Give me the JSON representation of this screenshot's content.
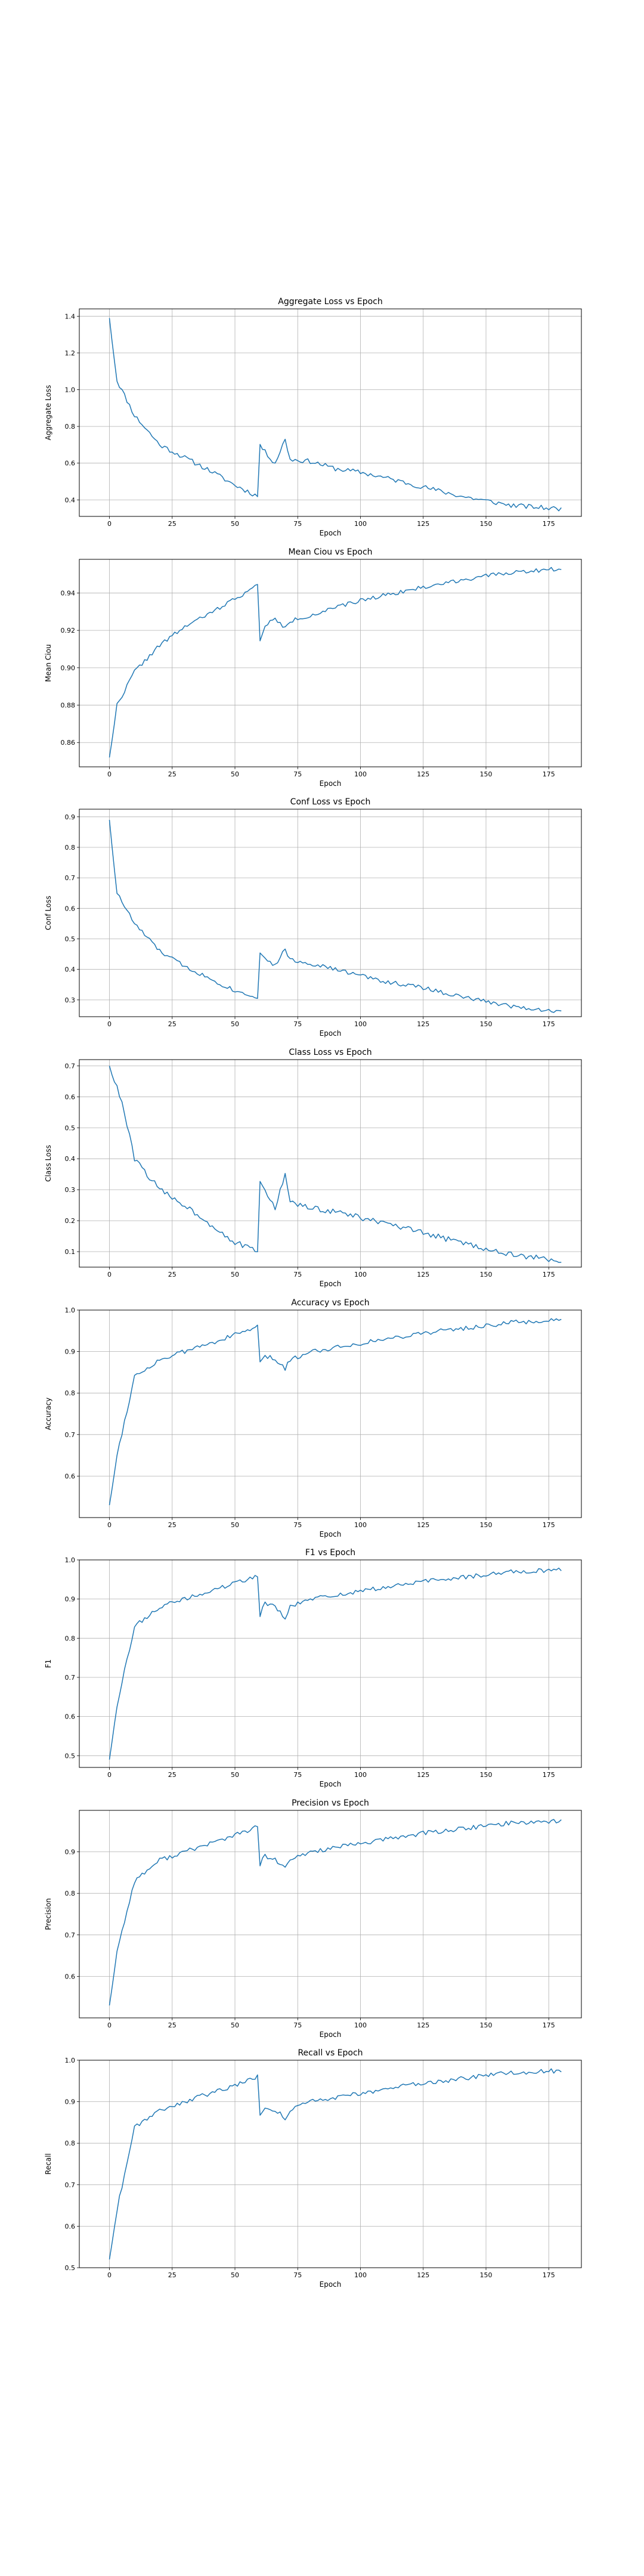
{
  "figure": {
    "background": "#ffffff",
    "line_color": "#1f77b4",
    "grid": true
  },
  "chart_data": [
    {
      "type": "line",
      "title": "Aggregate Loss vs Epoch",
      "xlabel": "Epoch",
      "ylabel": "Aggregate Loss",
      "xlim": [
        -12,
        188
      ],
      "ylim": [
        0.31,
        1.44
      ],
      "xticks": [
        0,
        25,
        50,
        75,
        100,
        125,
        150,
        175
      ],
      "yticks": [
        0.4,
        0.6,
        0.8,
        1.0,
        1.2,
        1.4
      ],
      "ytick_labels": [
        "0.4",
        "0.6",
        "0.8",
        "1.0",
        "1.2",
        "1.4"
      ],
      "keypoints": [
        [
          0,
          1.39
        ],
        [
          3,
          1.05
        ],
        [
          10,
          0.86
        ],
        [
          20,
          0.7
        ],
        [
          30,
          0.63
        ],
        [
          40,
          0.56
        ],
        [
          50,
          0.48
        ],
        [
          59,
          0.42
        ],
        [
          60,
          0.7
        ],
        [
          62,
          0.66
        ],
        [
          66,
          0.6
        ],
        [
          70,
          0.73
        ],
        [
          72,
          0.62
        ],
        [
          80,
          0.61
        ],
        [
          90,
          0.57
        ],
        [
          100,
          0.55
        ],
        [
          110,
          0.52
        ],
        [
          125,
          0.47
        ],
        [
          140,
          0.42
        ],
        [
          160,
          0.37
        ],
        [
          180,
          0.35
        ]
      ],
      "noise": 0.013,
      "seed": 11
    },
    {
      "type": "line",
      "title": "Mean Ciou vs Epoch",
      "xlabel": "Epoch",
      "ylabel": "Mean Ciou",
      "xlim": [
        -12,
        188
      ],
      "ylim": [
        0.847,
        0.958
      ],
      "xticks": [
        0,
        25,
        50,
        75,
        100,
        125,
        150,
        175
      ],
      "yticks": [
        0.86,
        0.88,
        0.9,
        0.92,
        0.94
      ],
      "ytick_labels": [
        "0.86",
        "0.88",
        "0.90",
        "0.92",
        "0.94"
      ],
      "keypoints": [
        [
          0,
          0.852
        ],
        [
          3,
          0.88
        ],
        [
          10,
          0.898
        ],
        [
          20,
          0.912
        ],
        [
          30,
          0.922
        ],
        [
          40,
          0.929
        ],
        [
          50,
          0.937
        ],
        [
          59,
          0.944
        ],
        [
          60,
          0.914
        ],
        [
          62,
          0.923
        ],
        [
          66,
          0.926
        ],
        [
          70,
          0.921
        ],
        [
          72,
          0.925
        ],
        [
          80,
          0.928
        ],
        [
          90,
          0.932
        ],
        [
          100,
          0.936
        ],
        [
          110,
          0.939
        ],
        [
          125,
          0.943
        ],
        [
          140,
          0.947
        ],
        [
          160,
          0.951
        ],
        [
          180,
          0.953
        ]
      ],
      "noise": 0.0011,
      "seed": 22
    },
    {
      "type": "line",
      "title": "Conf Loss vs Epoch",
      "xlabel": "Epoch",
      "ylabel": "Conf Loss",
      "xlim": [
        -12,
        188
      ],
      "ylim": [
        0.245,
        0.925
      ],
      "xticks": [
        0,
        25,
        50,
        75,
        100,
        125,
        150,
        175
      ],
      "yticks": [
        0.3,
        0.4,
        0.5,
        0.6,
        0.7,
        0.8,
        0.9
      ],
      "ytick_labels": [
        "0.3",
        "0.4",
        "0.5",
        "0.6",
        "0.7",
        "0.8",
        "0.9"
      ],
      "keypoints": [
        [
          0,
          0.89
        ],
        [
          3,
          0.65
        ],
        [
          10,
          0.55
        ],
        [
          20,
          0.46
        ],
        [
          30,
          0.41
        ],
        [
          40,
          0.37
        ],
        [
          50,
          0.33
        ],
        [
          59,
          0.31
        ],
        [
          60,
          0.45
        ],
        [
          62,
          0.44
        ],
        [
          66,
          0.41
        ],
        [
          70,
          0.47
        ],
        [
          72,
          0.43
        ],
        [
          80,
          0.42
        ],
        [
          90,
          0.4
        ],
        [
          100,
          0.38
        ],
        [
          110,
          0.36
        ],
        [
          125,
          0.34
        ],
        [
          140,
          0.31
        ],
        [
          160,
          0.28
        ],
        [
          180,
          0.26
        ]
      ],
      "noise": 0.007,
      "seed": 33
    },
    {
      "type": "line",
      "title": "Class Loss vs Epoch",
      "xlabel": "Epoch",
      "ylabel": "Class Loss",
      "xlim": [
        -12,
        188
      ],
      "ylim": [
        0.05,
        0.72
      ],
      "xticks": [
        0,
        25,
        50,
        75,
        100,
        125,
        150,
        175
      ],
      "yticks": [
        0.1,
        0.2,
        0.3,
        0.4,
        0.5,
        0.6,
        0.7
      ],
      "ytick_labels": [
        "0.1",
        "0.2",
        "0.3",
        "0.4",
        "0.5",
        "0.6",
        "0.7"
      ],
      "keypoints": [
        [
          0,
          0.7
        ],
        [
          5,
          0.58
        ],
        [
          10,
          0.4
        ],
        [
          20,
          0.3
        ],
        [
          30,
          0.25
        ],
        [
          40,
          0.19
        ],
        [
          50,
          0.13
        ],
        [
          59,
          0.1
        ],
        [
          60,
          0.32
        ],
        [
          62,
          0.3
        ],
        [
          66,
          0.24
        ],
        [
          70,
          0.35
        ],
        [
          72,
          0.26
        ],
        [
          80,
          0.24
        ],
        [
          90,
          0.23
        ],
        [
          100,
          0.21
        ],
        [
          110,
          0.19
        ],
        [
          125,
          0.16
        ],
        [
          140,
          0.13
        ],
        [
          160,
          0.09
        ],
        [
          180,
          0.07
        ]
      ],
      "noise": 0.009,
      "seed": 44
    },
    {
      "type": "line",
      "title": "Accuracy vs Epoch",
      "xlabel": "Epoch",
      "ylabel": "Accuracy",
      "xlim": [
        -12,
        188
      ],
      "ylim": [
        0.5,
        1.0
      ],
      "xticks": [
        0,
        25,
        50,
        75,
        100,
        125,
        150,
        175
      ],
      "yticks": [
        0.6,
        0.7,
        0.8,
        0.9,
        1.0
      ],
      "ytick_labels": [
        "0.6",
        "0.7",
        "0.8",
        "0.9",
        "1.0"
      ],
      "keypoints": [
        [
          0,
          0.53
        ],
        [
          3,
          0.65
        ],
        [
          10,
          0.84
        ],
        [
          20,
          0.88
        ],
        [
          30,
          0.9
        ],
        [
          40,
          0.92
        ],
        [
          50,
          0.94
        ],
        [
          59,
          0.96
        ],
        [
          60,
          0.87
        ],
        [
          62,
          0.89
        ],
        [
          66,
          0.88
        ],
        [
          70,
          0.86
        ],
        [
          72,
          0.88
        ],
        [
          80,
          0.9
        ],
        [
          90,
          0.91
        ],
        [
          100,
          0.92
        ],
        [
          110,
          0.93
        ],
        [
          125,
          0.945
        ],
        [
          140,
          0.955
        ],
        [
          160,
          0.97
        ],
        [
          180,
          0.975
        ]
      ],
      "noise": 0.0055,
      "seed": 55
    },
    {
      "type": "line",
      "title": "F1 vs Epoch",
      "xlabel": "Epoch",
      "ylabel": "F1",
      "xlim": [
        -12,
        188
      ],
      "ylim": [
        0.47,
        1.0
      ],
      "xticks": [
        0,
        25,
        50,
        75,
        100,
        125,
        150,
        175
      ],
      "yticks": [
        0.5,
        0.6,
        0.7,
        0.8,
        0.9,
        1.0
      ],
      "ytick_labels": [
        "0.5",
        "0.6",
        "0.7",
        "0.8",
        "0.9",
        "1.0"
      ],
      "keypoints": [
        [
          0,
          0.49
        ],
        [
          3,
          0.63
        ],
        [
          10,
          0.83
        ],
        [
          20,
          0.88
        ],
        [
          30,
          0.9
        ],
        [
          40,
          0.92
        ],
        [
          50,
          0.94
        ],
        [
          59,
          0.96
        ],
        [
          60,
          0.86
        ],
        [
          62,
          0.89
        ],
        [
          66,
          0.88
        ],
        [
          70,
          0.85
        ],
        [
          72,
          0.88
        ],
        [
          80,
          0.9
        ],
        [
          90,
          0.91
        ],
        [
          100,
          0.92
        ],
        [
          110,
          0.93
        ],
        [
          125,
          0.945
        ],
        [
          140,
          0.955
        ],
        [
          160,
          0.97
        ],
        [
          180,
          0.975
        ]
      ],
      "noise": 0.0055,
      "seed": 66
    },
    {
      "type": "line",
      "title": "Precision vs Epoch",
      "xlabel": "Epoch",
      "ylabel": "Precision",
      "xlim": [
        -12,
        188
      ],
      "ylim": [
        0.5,
        1.0
      ],
      "xticks": [
        0,
        25,
        50,
        75,
        100,
        125,
        150,
        175
      ],
      "yticks": [
        0.6,
        0.7,
        0.8,
        0.9
      ],
      "ytick_labels": [
        "0.6",
        "0.7",
        "0.8",
        "0.9"
      ],
      "keypoints": [
        [
          0,
          0.53
        ],
        [
          3,
          0.66
        ],
        [
          10,
          0.83
        ],
        [
          20,
          0.88
        ],
        [
          30,
          0.9
        ],
        [
          40,
          0.92
        ],
        [
          50,
          0.94
        ],
        [
          59,
          0.96
        ],
        [
          60,
          0.87
        ],
        [
          62,
          0.89
        ],
        [
          66,
          0.88
        ],
        [
          70,
          0.86
        ],
        [
          72,
          0.88
        ],
        [
          80,
          0.9
        ],
        [
          90,
          0.91
        ],
        [
          100,
          0.92
        ],
        [
          110,
          0.93
        ],
        [
          125,
          0.945
        ],
        [
          140,
          0.955
        ],
        [
          160,
          0.97
        ],
        [
          180,
          0.975
        ]
      ],
      "noise": 0.0055,
      "seed": 77
    },
    {
      "type": "line",
      "title": "Recall vs Epoch",
      "xlabel": "Epoch",
      "ylabel": "Recall",
      "xlim": [
        -12,
        188
      ],
      "ylim": [
        0.5,
        1.0
      ],
      "xticks": [
        0,
        25,
        50,
        75,
        100,
        125,
        150,
        175
      ],
      "yticks": [
        0.5,
        0.6,
        0.7,
        0.8,
        0.9,
        1.0
      ],
      "ytick_labels": [
        "0.5",
        "0.6",
        "0.7",
        "0.8",
        "0.9",
        "1.0"
      ],
      "keypoints": [
        [
          0,
          0.52
        ],
        [
          3,
          0.64
        ],
        [
          10,
          0.84
        ],
        [
          20,
          0.88
        ],
        [
          30,
          0.9
        ],
        [
          40,
          0.92
        ],
        [
          50,
          0.94
        ],
        [
          59,
          0.96
        ],
        [
          60,
          0.87
        ],
        [
          62,
          0.89
        ],
        [
          66,
          0.88
        ],
        [
          70,
          0.86
        ],
        [
          72,
          0.88
        ],
        [
          80,
          0.9
        ],
        [
          90,
          0.91
        ],
        [
          100,
          0.92
        ],
        [
          110,
          0.93
        ],
        [
          125,
          0.945
        ],
        [
          140,
          0.955
        ],
        [
          160,
          0.97
        ],
        [
          180,
          0.975
        ]
      ],
      "noise": 0.0055,
      "seed": 88
    }
  ]
}
